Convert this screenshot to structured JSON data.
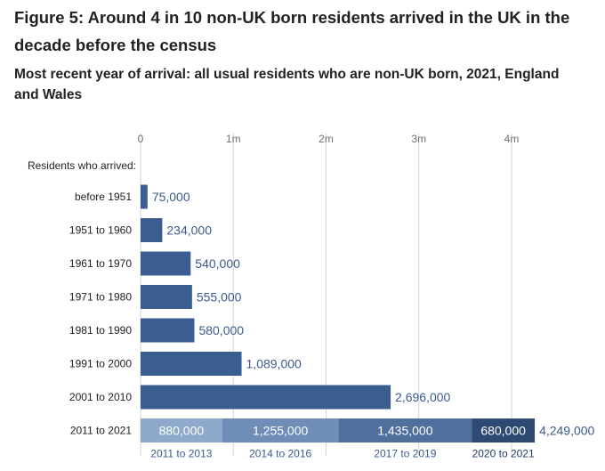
{
  "title": "Figure 5: Around 4 in 10 non-UK born residents arrived in the UK in the decade before the census",
  "subtitle": "Most recent year of arrival: all usual residents who are non-UK born, 2021, England and Wales",
  "chart_data": {
    "type": "bar",
    "orientation": "horizontal",
    "title": "Figure 5: Around 4 in 10 non-UK born residents arrived in the UK in the decade before the census",
    "subtitle": "Most recent year of arrival: all usual residents who are non-UK born, 2021, England and Wales",
    "xlim": [
      0,
      4000000
    ],
    "x_ticks": [
      {
        "value": 0,
        "label": "0"
      },
      {
        "value": 1000000,
        "label": "1m"
      },
      {
        "value": 2000000,
        "label": "2m"
      },
      {
        "value": 3000000,
        "label": "3m"
      },
      {
        "value": 4000000,
        "label": "4m"
      }
    ],
    "grid": true,
    "category_header": "Residents who arrived:",
    "categories": [
      "before 1951",
      "1951 to 1960",
      "1961 to 1970",
      "1971 to 1980",
      "1981 to 1990",
      "1991 to 2000",
      "2001 to 2010"
    ],
    "values": [
      75000,
      234000,
      540000,
      555000,
      580000,
      1089000,
      2696000
    ],
    "value_labels": [
      "75,000",
      "234,000",
      "540,000",
      "555,000",
      "580,000",
      "1,089,000",
      "2,696,000"
    ],
    "bar_color": "#3b5e91",
    "stacked_row": {
      "category": "2011 to 2021",
      "total": 4249000,
      "total_label": "4,249,000",
      "segments": [
        {
          "name": "2011 to 2013",
          "value": 880000,
          "label": "880,000",
          "color": "#8fa9cc"
        },
        {
          "name": "2014 to 2016",
          "value": 1255000,
          "label": "1,255,000",
          "color": "#6f8db6"
        },
        {
          "name": "2017 to 2019",
          "value": 1435000,
          "label": "1,435,000",
          "color": "#4f6f9c"
        },
        {
          "name": "2020 to 2021",
          "value": 680000,
          "label": "680,000",
          "color": "#2f4a72"
        }
      ]
    }
  }
}
